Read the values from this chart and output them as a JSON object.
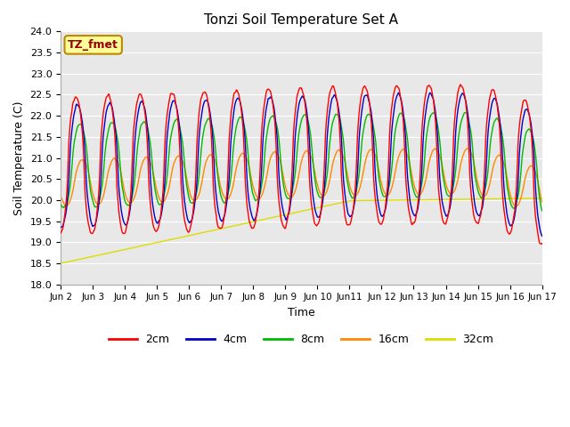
{
  "title": "Tonzi Soil Temperature Set A",
  "xlabel": "Time",
  "ylabel": "Soil Temperature (C)",
  "ylim": [
    18.0,
    24.0
  ],
  "yticks": [
    18.0,
    18.5,
    19.0,
    19.5,
    20.0,
    20.5,
    21.0,
    21.5,
    22.0,
    22.5,
    23.0,
    23.5,
    24.0
  ],
  "xtick_labels": [
    "Jun 2",
    "Jun 3",
    "Jun 4",
    "Jun 5",
    "Jun 6",
    "Jun 7",
    "Jun 8",
    "Jun 9",
    "Jun 10",
    "Jun11",
    "Jun 12",
    "Jun 13",
    "Jun 14",
    "Jun 15",
    "Jun 16",
    "Jun 17"
  ],
  "legend_labels": [
    "2cm",
    "4cm",
    "8cm",
    "16cm",
    "32cm"
  ],
  "colors": {
    "2cm": "#ff0000",
    "4cm": "#0000cc",
    "8cm": "#00bb00",
    "16cm": "#ff8800",
    "32cm": "#dddd00"
  },
  "annotation_text": "TZ_fmet",
  "annotation_bg": "#ffff99",
  "annotation_border": "#bb8800",
  "fig_bg": "#ffffff",
  "plot_bg": "#e8e8e8",
  "grid_color": "#ffffff"
}
